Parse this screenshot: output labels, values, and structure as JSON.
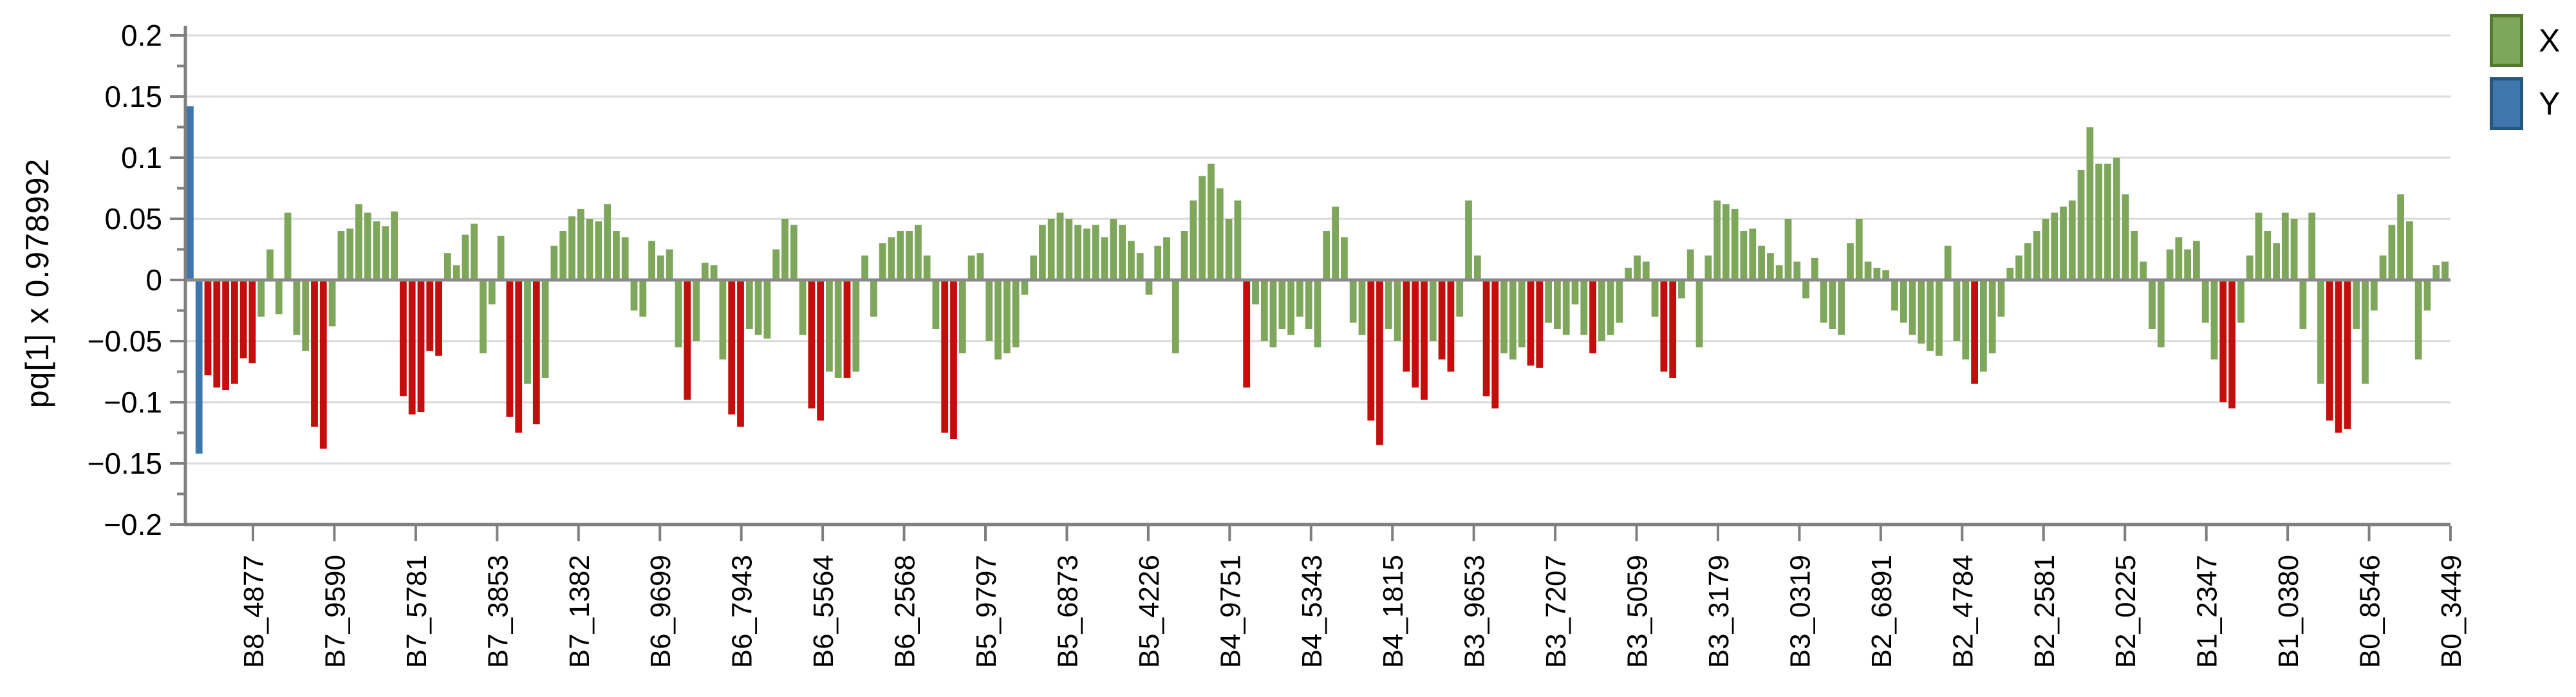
{
  "app": {
    "background": "#ffffff"
  },
  "y_axis_title": "pq[1] x 0.978992",
  "legend": {
    "position": "top-right",
    "items": [
      {
        "label": "X",
        "color": "#7ea75c",
        "border": "#54792f"
      },
      {
        "label": "Y",
        "color": "#3f77ad",
        "border": "#25567f"
      }
    ]
  },
  "chart_data": {
    "type": "bar",
    "title": "",
    "xlabel": "",
    "ylabel": "pq[1] x 0.978992",
    "ylim": [
      -0.2,
      0.2
    ],
    "ytick_step": 0.05,
    "ytick_minor_step": 0.025,
    "grid": "horizontal",
    "legend_position": "top-right",
    "ytick_labels": [
      "0.2",
      "0.15",
      "0.1",
      "0.05",
      "0",
      "−0.05",
      "−0.1",
      "−0.15",
      "−0.2"
    ],
    "xtick_labels": [
      "B8_4877",
      "B7_9590",
      "B7_5781",
      "B7_3853",
      "B7_1382",
      "B6_9699",
      "B6_7943",
      "B6_5564",
      "B6_2568",
      "B5_9797",
      "B5_6873",
      "B5_4226",
      "B4_9751",
      "B4_5343",
      "B4_1815",
      "B3_9653",
      "B3_7207",
      "B3_5059",
      "B3_3179",
      "B3_0319",
      "B2_6891",
      "B2_4784",
      "B2_2581",
      "B2_0225",
      "B1_2347",
      "B1_0380",
      "B0_8546",
      "B0_3449"
    ],
    "series": [
      {
        "name": "X",
        "color": "#7ea75c"
      },
      {
        "name": "X (selected)",
        "color": "#c40d0d"
      },
      {
        "name": "Y",
        "color": "#3f77ad"
      }
    ],
    "value_scale": 0.001,
    "bars": [
      [
        142,
        2
      ],
      [
        -142,
        2
      ],
      [
        -78,
        1
      ],
      [
        -88,
        1
      ],
      [
        -90,
        1
      ],
      [
        -85,
        1
      ],
      [
        -64,
        1
      ],
      [
        -68,
        1
      ],
      [
        -30,
        0
      ],
      [
        25,
        0
      ],
      [
        -28,
        0
      ],
      [
        55,
        0
      ],
      [
        -45,
        0
      ],
      [
        -58,
        0
      ],
      [
        -120,
        1
      ],
      [
        -138,
        1
      ],
      [
        -38,
        0
      ],
      [
        40,
        0
      ],
      [
        42,
        0
      ],
      [
        62,
        0
      ],
      [
        55,
        0
      ],
      [
        48,
        0
      ],
      [
        44,
        0
      ],
      [
        56,
        0
      ],
      [
        -95,
        1
      ],
      [
        -110,
        1
      ],
      [
        -108,
        1
      ],
      [
        -58,
        1
      ],
      [
        -62,
        1
      ],
      [
        22,
        0
      ],
      [
        12,
        0
      ],
      [
        37,
        0
      ],
      [
        46,
        0
      ],
      [
        -60,
        0
      ],
      [
        -20,
        0
      ],
      [
        36,
        0
      ],
      [
        -112,
        1
      ],
      [
        -125,
        1
      ],
      [
        -85,
        0
      ],
      [
        -118,
        1
      ],
      [
        -80,
        0
      ],
      [
        28,
        0
      ],
      [
        40,
        0
      ],
      [
        52,
        0
      ],
      [
        58,
        0
      ],
      [
        50,
        0
      ],
      [
        48,
        0
      ],
      [
        62,
        0
      ],
      [
        40,
        0
      ],
      [
        35,
        0
      ],
      [
        -25,
        0
      ],
      [
        -30,
        0
      ],
      [
        32,
        0
      ],
      [
        20,
        0
      ],
      [
        25,
        0
      ],
      [
        -55,
        0
      ],
      [
        -98,
        1
      ],
      [
        -50,
        0
      ],
      [
        14,
        0
      ],
      [
        12,
        0
      ],
      [
        -65,
        0
      ],
      [
        -110,
        1
      ],
      [
        -120,
        1
      ],
      [
        -40,
        0
      ],
      [
        -45,
        0
      ],
      [
        -48,
        0
      ],
      [
        25,
        0
      ],
      [
        50,
        0
      ],
      [
        45,
        0
      ],
      [
        -45,
        0
      ],
      [
        -105,
        1
      ],
      [
        -115,
        1
      ],
      [
        -75,
        0
      ],
      [
        -80,
        0
      ],
      [
        -80,
        1
      ],
      [
        -75,
        0
      ],
      [
        20,
        0
      ],
      [
        -30,
        0
      ],
      [
        30,
        0
      ],
      [
        35,
        0
      ],
      [
        40,
        0
      ],
      [
        40,
        0
      ],
      [
        45,
        0
      ],
      [
        20,
        0
      ],
      [
        -40,
        0
      ],
      [
        -125,
        1
      ],
      [
        -130,
        1
      ],
      [
        -60,
        0
      ],
      [
        20,
        0
      ],
      [
        22,
        0
      ],
      [
        -50,
        0
      ],
      [
        -65,
        0
      ],
      [
        -60,
        0
      ],
      [
        -55,
        0
      ],
      [
        -12,
        0
      ],
      [
        20,
        0
      ],
      [
        45,
        0
      ],
      [
        50,
        0
      ],
      [
        55,
        0
      ],
      [
        50,
        0
      ],
      [
        45,
        0
      ],
      [
        42,
        0
      ],
      [
        45,
        0
      ],
      [
        35,
        0
      ],
      [
        50,
        0
      ],
      [
        45,
        0
      ],
      [
        32,
        0
      ],
      [
        22,
        0
      ],
      [
        -12,
        0
      ],
      [
        28,
        0
      ],
      [
        35,
        0
      ],
      [
        -60,
        0
      ],
      [
        40,
        0
      ],
      [
        65,
        0
      ],
      [
        85,
        0
      ],
      [
        95,
        0
      ],
      [
        75,
        0
      ],
      [
        50,
        0
      ],
      [
        65,
        0
      ],
      [
        -88,
        1
      ],
      [
        -20,
        0
      ],
      [
        -50,
        0
      ],
      [
        -55,
        0
      ],
      [
        -40,
        0
      ],
      [
        -45,
        0
      ],
      [
        -30,
        0
      ],
      [
        -40,
        0
      ],
      [
        -55,
        0
      ],
      [
        40,
        0
      ],
      [
        60,
        0
      ],
      [
        35,
        0
      ],
      [
        -35,
        0
      ],
      [
        -45,
        0
      ],
      [
        -115,
        1
      ],
      [
        -135,
        1
      ],
      [
        -40,
        0
      ],
      [
        -50,
        0
      ],
      [
        -75,
        1
      ],
      [
        -88,
        1
      ],
      [
        -98,
        1
      ],
      [
        -50,
        0
      ],
      [
        -65,
        1
      ],
      [
        -75,
        1
      ],
      [
        -30,
        0
      ],
      [
        65,
        0
      ],
      [
        20,
        0
      ],
      [
        -95,
        1
      ],
      [
        -105,
        1
      ],
      [
        -60,
        0
      ],
      [
        -65,
        0
      ],
      [
        -55,
        0
      ],
      [
        -70,
        1
      ],
      [
        -72,
        1
      ],
      [
        -35,
        0
      ],
      [
        -40,
        0
      ],
      [
        -45,
        0
      ],
      [
        -20,
        0
      ],
      [
        -45,
        0
      ],
      [
        -60,
        1
      ],
      [
        -50,
        0
      ],
      [
        -45,
        0
      ],
      [
        -35,
        0
      ],
      [
        10,
        0
      ],
      [
        20,
        0
      ],
      [
        15,
        0
      ],
      [
        -30,
        0
      ],
      [
        -75,
        1
      ],
      [
        -80,
        1
      ],
      [
        -15,
        0
      ],
      [
        25,
        0
      ],
      [
        -55,
        0
      ],
      [
        20,
        0
      ],
      [
        65,
        0
      ],
      [
        62,
        0
      ],
      [
        58,
        0
      ],
      [
        40,
        0
      ],
      [
        42,
        0
      ],
      [
        28,
        0
      ],
      [
        22,
        0
      ],
      [
        12,
        0
      ],
      [
        50,
        0
      ],
      [
        15,
        0
      ],
      [
        -15,
        0
      ],
      [
        18,
        0
      ],
      [
        -35,
        0
      ],
      [
        -40,
        0
      ],
      [
        -45,
        0
      ],
      [
        30,
        0
      ],
      [
        50,
        0
      ],
      [
        15,
        0
      ],
      [
        10,
        0
      ],
      [
        8,
        0
      ],
      [
        -25,
        0
      ],
      [
        -35,
        0
      ],
      [
        -45,
        0
      ],
      [
        -52,
        0
      ],
      [
        -58,
        0
      ],
      [
        -62,
        0
      ],
      [
        28,
        0
      ],
      [
        -50,
        0
      ],
      [
        -65,
        0
      ],
      [
        -85,
        1
      ],
      [
        -75,
        0
      ],
      [
        -60,
        0
      ],
      [
        -30,
        0
      ],
      [
        10,
        0
      ],
      [
        20,
        0
      ],
      [
        30,
        0
      ],
      [
        40,
        0
      ],
      [
        50,
        0
      ],
      [
        55,
        0
      ],
      [
        60,
        0
      ],
      [
        65,
        0
      ],
      [
        90,
        0
      ],
      [
        125,
        0
      ],
      [
        95,
        0
      ],
      [
        95,
        0
      ],
      [
        100,
        0
      ],
      [
        70,
        0
      ],
      [
        40,
        0
      ],
      [
        15,
        0
      ],
      [
        -40,
        0
      ],
      [
        -55,
        0
      ],
      [
        25,
        0
      ],
      [
        35,
        0
      ],
      [
        25,
        0
      ],
      [
        32,
        0
      ],
      [
        -35,
        0
      ],
      [
        -65,
        0
      ],
      [
        -100,
        1
      ],
      [
        -105,
        1
      ],
      [
        -35,
        0
      ],
      [
        20,
        0
      ],
      [
        55,
        0
      ],
      [
        40,
        0
      ],
      [
        30,
        0
      ],
      [
        55,
        0
      ],
      [
        50,
        0
      ],
      [
        -40,
        0
      ],
      [
        55,
        0
      ],
      [
        -85,
        0
      ],
      [
        -115,
        1
      ],
      [
        -125,
        1
      ],
      [
        -122,
        1
      ],
      [
        -40,
        0
      ],
      [
        -85,
        0
      ],
      [
        -25,
        0
      ],
      [
        20,
        0
      ],
      [
        45,
        0
      ],
      [
        70,
        0
      ],
      [
        48,
        0
      ],
      [
        -65,
        0
      ],
      [
        -25,
        0
      ],
      [
        12,
        0
      ],
      [
        15,
        0
      ]
    ],
    "colors": {
      "gridline": "#dadada",
      "zero_line": "#8a8a8a",
      "axis_line": "#7f7f7f",
      "tick": "#7f7f7f",
      "text": "#000000"
    }
  }
}
